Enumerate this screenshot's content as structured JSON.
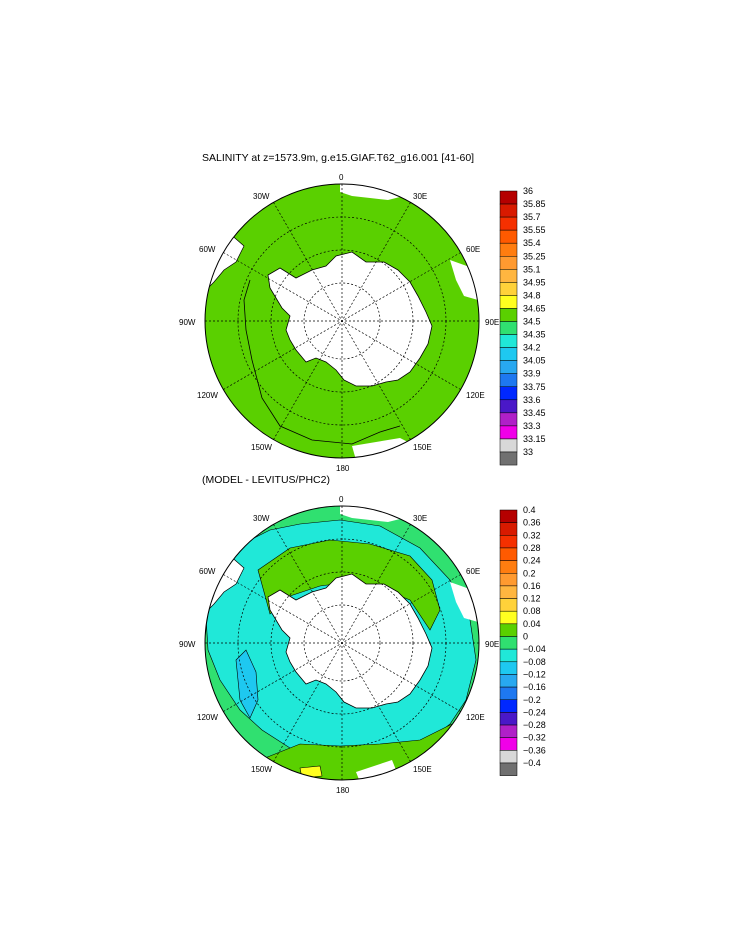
{
  "panels": [
    {
      "title": "SALINITY at z=1573.9m, g.e15.GIAF.T62_g16.001 [41-60]",
      "lon_labels": [
        "0",
        "30E",
        "60E",
        "90E",
        "120E",
        "150E",
        "180",
        "150W",
        "120W",
        "90W",
        "60W",
        "30W"
      ],
      "colorbar": {
        "labels": [
          "36",
          "35.85",
          "35.7",
          "35.55",
          "35.4",
          "35.25",
          "35.1",
          "34.95",
          "34.8",
          "34.65",
          "34.5",
          "34.35",
          "34.2",
          "34.05",
          "33.9",
          "33.75",
          "33.6",
          "33.45",
          "33.3",
          "33.15",
          "33"
        ],
        "colors": [
          "#b50000",
          "#d81a00",
          "#f53000",
          "#ff5a00",
          "#ff7d10",
          "#ff9a30",
          "#ffb640",
          "#ffd23a",
          "#ffff20",
          "#5ad000",
          "#30e070",
          "#20e8d8",
          "#1ec8f0",
          "#28a8f0",
          "#1e78f0",
          "#0028ff",
          "#4a18c8",
          "#b020c8",
          "#f000e8",
          "#d8d8d8",
          "#707070"
        ]
      },
      "field_note_color": "#5ad000"
    },
    {
      "title": "(MODEL - LEVITUS/PHC2)",
      "lon_labels": [
        "0",
        "30E",
        "60E",
        "90E",
        "120E",
        "150E",
        "180",
        "150W",
        "120W",
        "90W",
        "60W",
        "30W"
      ],
      "colorbar": {
        "labels": [
          "0.4",
          "0.36",
          "0.32",
          "0.28",
          "0.24",
          "0.2",
          "0.16",
          "0.12",
          "0.08",
          "0.04",
          "0",
          "−0.04",
          "−0.08",
          "−0.12",
          "−0.16",
          "−0.2",
          "−0.24",
          "−0.28",
          "−0.32",
          "−0.36",
          "−0.4"
        ],
        "colors": [
          "#b50000",
          "#d81a00",
          "#f53000",
          "#ff5a00",
          "#ff7d10",
          "#ff9a30",
          "#ffb640",
          "#ffd23a",
          "#ffff20",
          "#5ad000",
          "#30e070",
          "#20e8d8",
          "#1ec8f0",
          "#28a8f0",
          "#1e78f0",
          "#0028ff",
          "#4a18c8",
          "#b020c8",
          "#f000e8",
          "#d8d8d8",
          "#707070"
        ]
      }
    }
  ]
}
